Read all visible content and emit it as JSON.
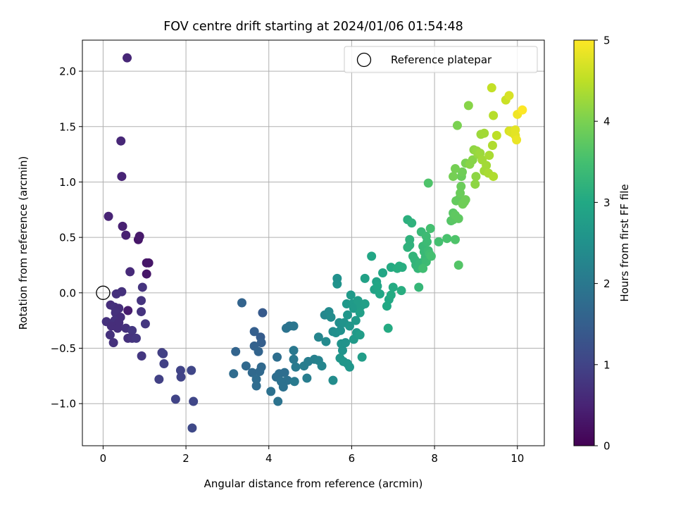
{
  "chart_data": {
    "type": "scatter",
    "title": "FOV centre drift starting at 2024/01/06 01:54:48",
    "xlabel": "Angular distance from reference (arcmin)",
    "ylabel": "Rotation from reference (arcmin)",
    "xlim": [
      -0.5,
      10.65
    ],
    "ylim": [
      -1.38,
      2.28
    ],
    "xticks": [
      0,
      2,
      4,
      6,
      8,
      10
    ],
    "yticks": [
      -1.0,
      -0.5,
      0.0,
      0.5,
      1.0,
      1.5,
      2.0
    ],
    "xtick_labels": [
      "0",
      "2",
      "4",
      "6",
      "8",
      "10"
    ],
    "ytick_labels": [
      "−1.0",
      "−0.5",
      "0.0",
      "0.5",
      "1.0",
      "1.5",
      "2.0"
    ],
    "grid": true,
    "legend": {
      "label": "Reference platepar",
      "placement": "top-right",
      "marker": "open-circle"
    },
    "reference_point": {
      "x": 0,
      "y": 0
    },
    "colorbar": {
      "label": "Hours from first FF file",
      "range": [
        0,
        5
      ],
      "ticks": [
        0,
        1,
        2,
        3,
        4,
        5
      ],
      "tick_labels": [
        "0",
        "1",
        "2",
        "3",
        "4",
        "5"
      ],
      "colormap": "viridis"
    },
    "series": [
      {
        "fields": [
          "x",
          "y",
          "hours"
        ],
        "points": [
          [
            0.58,
            2.12,
            0.55
          ],
          [
            0.43,
            1.37,
            0.55
          ],
          [
            0.45,
            1.05,
            0.5
          ],
          [
            0.13,
            0.69,
            0.5
          ],
          [
            0.47,
            0.6,
            0.45
          ],
          [
            0.55,
            0.52,
            0.45
          ],
          [
            0.85,
            0.48,
            0.3
          ],
          [
            0.88,
            0.51,
            0.35
          ],
          [
            1.05,
            0.27,
            0.3
          ],
          [
            1.1,
            0.27,
            0.3
          ],
          [
            1.05,
            0.17,
            0.3
          ],
          [
            0.65,
            0.19,
            0.6
          ],
          [
            0.45,
            0.01,
            0.7
          ],
          [
            0.32,
            -0.01,
            0.7
          ],
          [
            0.95,
            0.05,
            0.75
          ],
          [
            0.92,
            -0.07,
            0.75
          ],
          [
            0.18,
            -0.11,
            0.65
          ],
          [
            0.28,
            -0.13,
            0.7
          ],
          [
            0.38,
            -0.14,
            0.65
          ],
          [
            0.6,
            -0.16,
            0.4
          ],
          [
            0.3,
            -0.18,
            0.7
          ],
          [
            0.42,
            -0.22,
            0.65
          ],
          [
            0.92,
            -0.17,
            0.75
          ],
          [
            0.08,
            -0.26,
            0.7
          ],
          [
            0.28,
            -0.25,
            0.7
          ],
          [
            0.38,
            -0.27,
            0.65
          ],
          [
            1.02,
            -0.28,
            0.8
          ],
          [
            0.2,
            -0.3,
            0.65
          ],
          [
            0.35,
            -0.32,
            0.65
          ],
          [
            0.55,
            -0.32,
            0.7
          ],
          [
            0.7,
            -0.34,
            0.8
          ],
          [
            0.17,
            -0.38,
            0.7
          ],
          [
            0.6,
            -0.41,
            0.7
          ],
          [
            0.7,
            -0.41,
            0.75
          ],
          [
            0.8,
            -0.41,
            0.8
          ],
          [
            0.25,
            -0.45,
            0.7
          ],
          [
            0.93,
            -0.57,
            0.8
          ],
          [
            1.42,
            -0.54,
            0.9
          ],
          [
            1.45,
            -0.55,
            0.95
          ],
          [
            1.47,
            -0.64,
            0.95
          ],
          [
            1.35,
            -0.78,
            0.95
          ],
          [
            1.87,
            -0.7,
            1.0
          ],
          [
            1.88,
            -0.76,
            1.0
          ],
          [
            2.13,
            -0.7,
            1.05
          ],
          [
            1.75,
            -0.96,
            1.0
          ],
          [
            2.18,
            -0.98,
            1.05
          ],
          [
            2.15,
            -1.22,
            1.1
          ],
          [
            3.35,
            -0.09,
            1.6
          ],
          [
            3.85,
            -0.18,
            1.4
          ],
          [
            3.65,
            -0.35,
            1.5
          ],
          [
            3.8,
            -0.4,
            1.45
          ],
          [
            3.82,
            -0.45,
            1.5
          ],
          [
            3.65,
            -0.48,
            1.55
          ],
          [
            3.2,
            -0.53,
            1.6
          ],
          [
            3.75,
            -0.53,
            1.6
          ],
          [
            3.45,
            -0.66,
            1.7
          ],
          [
            3.6,
            -0.72,
            1.7
          ],
          [
            3.82,
            -0.67,
            1.7
          ],
          [
            3.15,
            -0.73,
            1.75
          ],
          [
            3.78,
            -0.71,
            1.7
          ],
          [
            3.7,
            -0.78,
            1.75
          ],
          [
            3.7,
            -0.84,
            1.75
          ],
          [
            4.2,
            -0.58,
            1.8
          ],
          [
            4.25,
            -0.73,
            1.8
          ],
          [
            4.18,
            -0.76,
            1.8
          ],
          [
            4.38,
            -0.72,
            1.8
          ],
          [
            4.45,
            -0.79,
            1.85
          ],
          [
            4.3,
            -0.8,
            1.85
          ],
          [
            4.35,
            -0.85,
            1.85
          ],
          [
            4.05,
            -0.89,
            1.85
          ],
          [
            4.22,
            -0.98,
            1.9
          ],
          [
            4.42,
            -0.32,
            1.9
          ],
          [
            4.5,
            -0.3,
            1.9
          ],
          [
            4.6,
            -0.3,
            1.95
          ],
          [
            4.6,
            -0.52,
            2.0
          ],
          [
            4.6,
            -0.6,
            2.0
          ],
          [
            4.65,
            -0.67,
            2.05
          ],
          [
            4.62,
            -0.8,
            2.05
          ],
          [
            4.85,
            -0.66,
            2.1
          ],
          [
            4.95,
            -0.62,
            2.1
          ],
          [
            4.92,
            -0.77,
            2.1
          ],
          [
            5.1,
            -0.6,
            2.15
          ],
          [
            5.2,
            -0.61,
            2.2
          ],
          [
            5.2,
            -0.4,
            2.25
          ],
          [
            5.28,
            -0.66,
            2.25
          ],
          [
            5.35,
            -0.2,
            2.3
          ],
          [
            5.45,
            -0.17,
            2.35
          ],
          [
            5.38,
            -0.44,
            2.35
          ],
          [
            5.5,
            -0.22,
            2.4
          ],
          [
            5.55,
            -0.35,
            2.4
          ],
          [
            5.62,
            -0.36,
            2.45
          ],
          [
            5.55,
            -0.79,
            2.4
          ],
          [
            5.65,
            0.08,
            2.55
          ],
          [
            5.65,
            0.13,
            2.5
          ],
          [
            5.7,
            -0.27,
            2.45
          ],
          [
            5.73,
            -0.34,
            2.5
          ],
          [
            5.75,
            -0.46,
            2.55
          ],
          [
            5.78,
            -0.52,
            2.55
          ],
          [
            5.72,
            -0.59,
            2.6
          ],
          [
            5.8,
            -0.62,
            2.6
          ],
          [
            5.9,
            -0.64,
            2.6
          ],
          [
            5.95,
            -0.67,
            2.6
          ],
          [
            5.85,
            -0.45,
            2.55
          ],
          [
            5.82,
            -0.27,
            2.55
          ],
          [
            5.9,
            -0.2,
            2.6
          ],
          [
            5.95,
            -0.3,
            2.6
          ],
          [
            5.88,
            -0.1,
            2.65
          ],
          [
            5.98,
            -0.02,
            2.7
          ],
          [
            6.02,
            -0.1,
            2.7
          ],
          [
            6.05,
            -0.14,
            2.7
          ],
          [
            6.1,
            -0.25,
            2.7
          ],
          [
            6.12,
            -0.36,
            2.7
          ],
          [
            6.05,
            -0.42,
            2.7
          ],
          [
            6.2,
            -0.38,
            2.75
          ],
          [
            6.25,
            -0.58,
            2.75
          ],
          [
            6.22,
            -0.12,
            2.75
          ],
          [
            6.15,
            -0.07,
            2.75
          ],
          [
            6.2,
            -0.18,
            2.8
          ],
          [
            6.32,
            -0.1,
            2.8
          ],
          [
            6.48,
            0.33,
            2.95
          ],
          [
            6.32,
            0.13,
            2.85
          ],
          [
            6.55,
            0.03,
            2.9
          ],
          [
            6.6,
            0.1,
            2.9
          ],
          [
            6.62,
            0.06,
            2.95
          ],
          [
            6.68,
            -0.01,
            2.95
          ],
          [
            6.75,
            0.18,
            2.95
          ],
          [
            6.85,
            -0.12,
            3.0
          ],
          [
            6.9,
            -0.06,
            3.0
          ],
          [
            6.95,
            -0.02,
            3.05
          ],
          [
            7.0,
            0.05,
            3.05
          ],
          [
            6.95,
            0.23,
            3.05
          ],
          [
            6.88,
            -0.32,
            3.05
          ],
          [
            7.1,
            0.22,
            3.1
          ],
          [
            7.15,
            0.24,
            3.1
          ],
          [
            7.2,
            0.02,
            3.1
          ],
          [
            7.22,
            0.23,
            3.1
          ],
          [
            7.35,
            0.66,
            3.15
          ],
          [
            7.4,
            0.48,
            3.2
          ],
          [
            7.4,
            0.43,
            3.2
          ],
          [
            7.35,
            0.41,
            3.2
          ],
          [
            7.45,
            0.63,
            3.2
          ],
          [
            7.48,
            0.33,
            3.25
          ],
          [
            7.52,
            0.3,
            3.25
          ],
          [
            7.55,
            0.25,
            3.25
          ],
          [
            7.6,
            0.22,
            3.3
          ],
          [
            7.62,
            0.05,
            3.3
          ],
          [
            7.65,
            0.27,
            3.3
          ],
          [
            7.68,
            0.55,
            3.35
          ],
          [
            7.72,
            0.42,
            3.35
          ],
          [
            7.75,
            0.37,
            3.35
          ],
          [
            7.78,
            0.32,
            3.35
          ],
          [
            7.8,
            0.28,
            3.4
          ],
          [
            7.8,
            0.51,
            3.4
          ],
          [
            7.82,
            0.46,
            3.4
          ],
          [
            7.85,
            0.38,
            3.4
          ],
          [
            7.72,
            0.22,
            3.45
          ],
          [
            7.88,
            0.35,
            3.45
          ],
          [
            7.9,
            0.58,
            3.5
          ],
          [
            7.92,
            0.33,
            3.5
          ],
          [
            7.85,
            0.99,
            3.6
          ],
          [
            8.1,
            0.46,
            3.5
          ],
          [
            8.3,
            0.49,
            3.55
          ],
          [
            8.5,
            0.48,
            3.6
          ],
          [
            8.58,
            0.25,
            3.65
          ],
          [
            8.4,
            0.65,
            3.65
          ],
          [
            8.45,
            0.66,
            3.7
          ],
          [
            8.45,
            0.72,
            3.7
          ],
          [
            8.5,
            0.7,
            3.75
          ],
          [
            8.58,
            0.67,
            3.75
          ],
          [
            8.52,
            0.83,
            3.8
          ],
          [
            8.6,
            0.85,
            3.8
          ],
          [
            8.62,
            0.9,
            3.85
          ],
          [
            8.64,
            0.96,
            3.85
          ],
          [
            8.65,
            1.05,
            3.85
          ],
          [
            8.67,
            1.09,
            3.9
          ],
          [
            8.68,
            0.8,
            3.9
          ],
          [
            8.72,
            0.82,
            3.9
          ],
          [
            8.75,
            0.84,
            3.9
          ],
          [
            8.45,
            1.05,
            3.95
          ],
          [
            8.5,
            1.12,
            3.95
          ],
          [
            8.55,
            1.51,
            4.0
          ],
          [
            8.75,
            1.17,
            4.0
          ],
          [
            8.82,
            1.69,
            4.1
          ],
          [
            8.85,
            1.16,
            4.1
          ],
          [
            8.92,
            1.2,
            4.1
          ],
          [
            8.95,
            1.29,
            4.15
          ],
          [
            8.98,
            0.98,
            4.15
          ],
          [
            9.0,
            1.05,
            4.15
          ],
          [
            9.02,
            1.28,
            4.2
          ],
          [
            9.05,
            1.25,
            4.2
          ],
          [
            9.1,
            1.26,
            4.25
          ],
          [
            9.12,
            1.43,
            4.25
          ],
          [
            9.15,
            1.2,
            4.3
          ],
          [
            9.2,
            1.44,
            4.3
          ],
          [
            9.2,
            1.1,
            4.3
          ],
          [
            9.25,
            1.15,
            4.3
          ],
          [
            9.3,
            1.08,
            4.35
          ],
          [
            9.32,
            1.24,
            4.35
          ],
          [
            9.38,
            1.85,
            4.55
          ],
          [
            9.4,
            1.33,
            4.4
          ],
          [
            9.42,
            1.6,
            4.45
          ],
          [
            9.42,
            1.05,
            4.4
          ],
          [
            9.5,
            1.42,
            4.5
          ],
          [
            9.72,
            1.74,
            4.6
          ],
          [
            9.8,
            1.78,
            4.7
          ],
          [
            9.8,
            1.46,
            4.7
          ],
          [
            9.85,
            1.45,
            4.75
          ],
          [
            9.9,
            1.44,
            4.75
          ],
          [
            9.95,
            1.47,
            4.8
          ],
          [
            9.95,
            1.42,
            4.8
          ],
          [
            9.98,
            1.38,
            4.85
          ],
          [
            10.0,
            1.61,
            4.9
          ],
          [
            10.12,
            1.65,
            5.0
          ]
        ]
      }
    ]
  }
}
